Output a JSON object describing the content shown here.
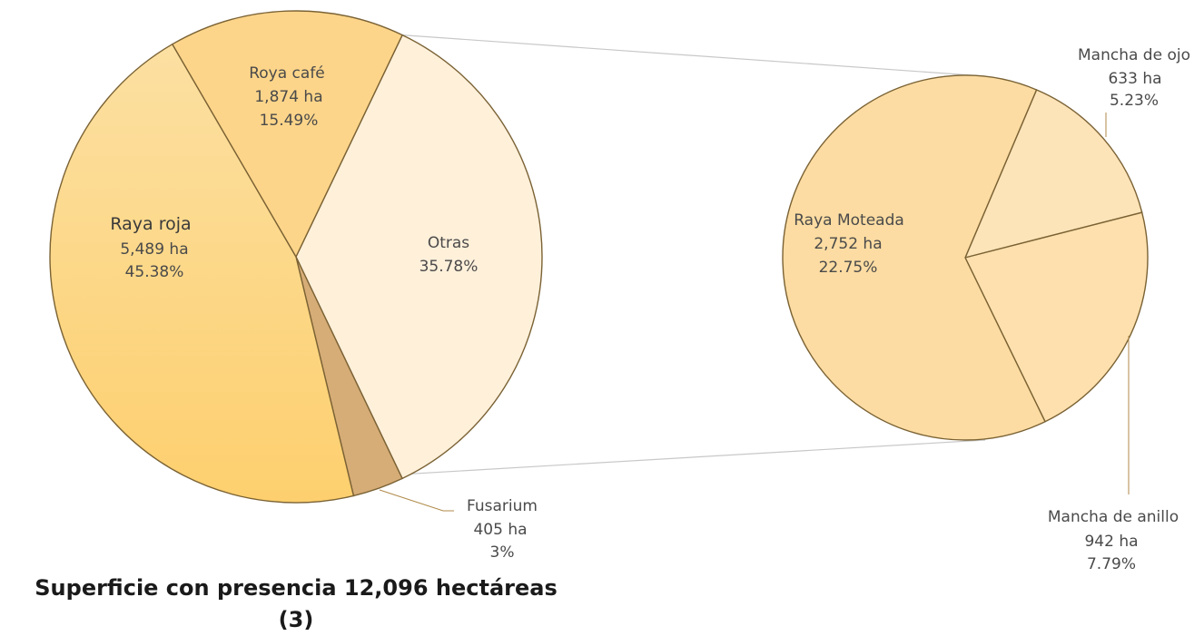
{
  "chart_data": [
    {
      "type": "pie",
      "title": "Superficie con presencia 12,096 hectáreas",
      "title_line2": "(3)",
      "slices": [
        {
          "name": "Raya roja",
          "area": "5,489 ha",
          "percent": 45.38,
          "percent_label": "45.38%",
          "color": "#fdd98a"
        },
        {
          "name": "Roya café",
          "area": "1,874 ha",
          "percent": 15.49,
          "percent_label": "15.49%",
          "color": "#fdd58a"
        },
        {
          "name": "Otras",
          "area": "",
          "percent": 35.78,
          "percent_label": "35.78%",
          "color": "#fff0da"
        },
        {
          "name": "Fusarium",
          "area": "405 ha",
          "percent": 3.35,
          "percent_label": "3%",
          "color": "#d6ac77"
        }
      ]
    },
    {
      "type": "pie",
      "title": "",
      "slices": [
        {
          "name": "Raya Moteada",
          "area": "2,752 ha",
          "percent": 22.75,
          "percent_label": "22.75%",
          "color": "#fcdca2"
        },
        {
          "name": "Mancha de ojo",
          "area": "633 ha",
          "percent": 5.23,
          "percent_label": "5.23%",
          "color": "#fde3b8"
        },
        {
          "name": "Mancha de anillo",
          "area": "942 ha",
          "percent": 7.79,
          "percent_label": "7.79%",
          "color": "#fde0ad"
        }
      ]
    }
  ],
  "stroke_color": "#7a6234",
  "connector_color": "#c8c8c8"
}
